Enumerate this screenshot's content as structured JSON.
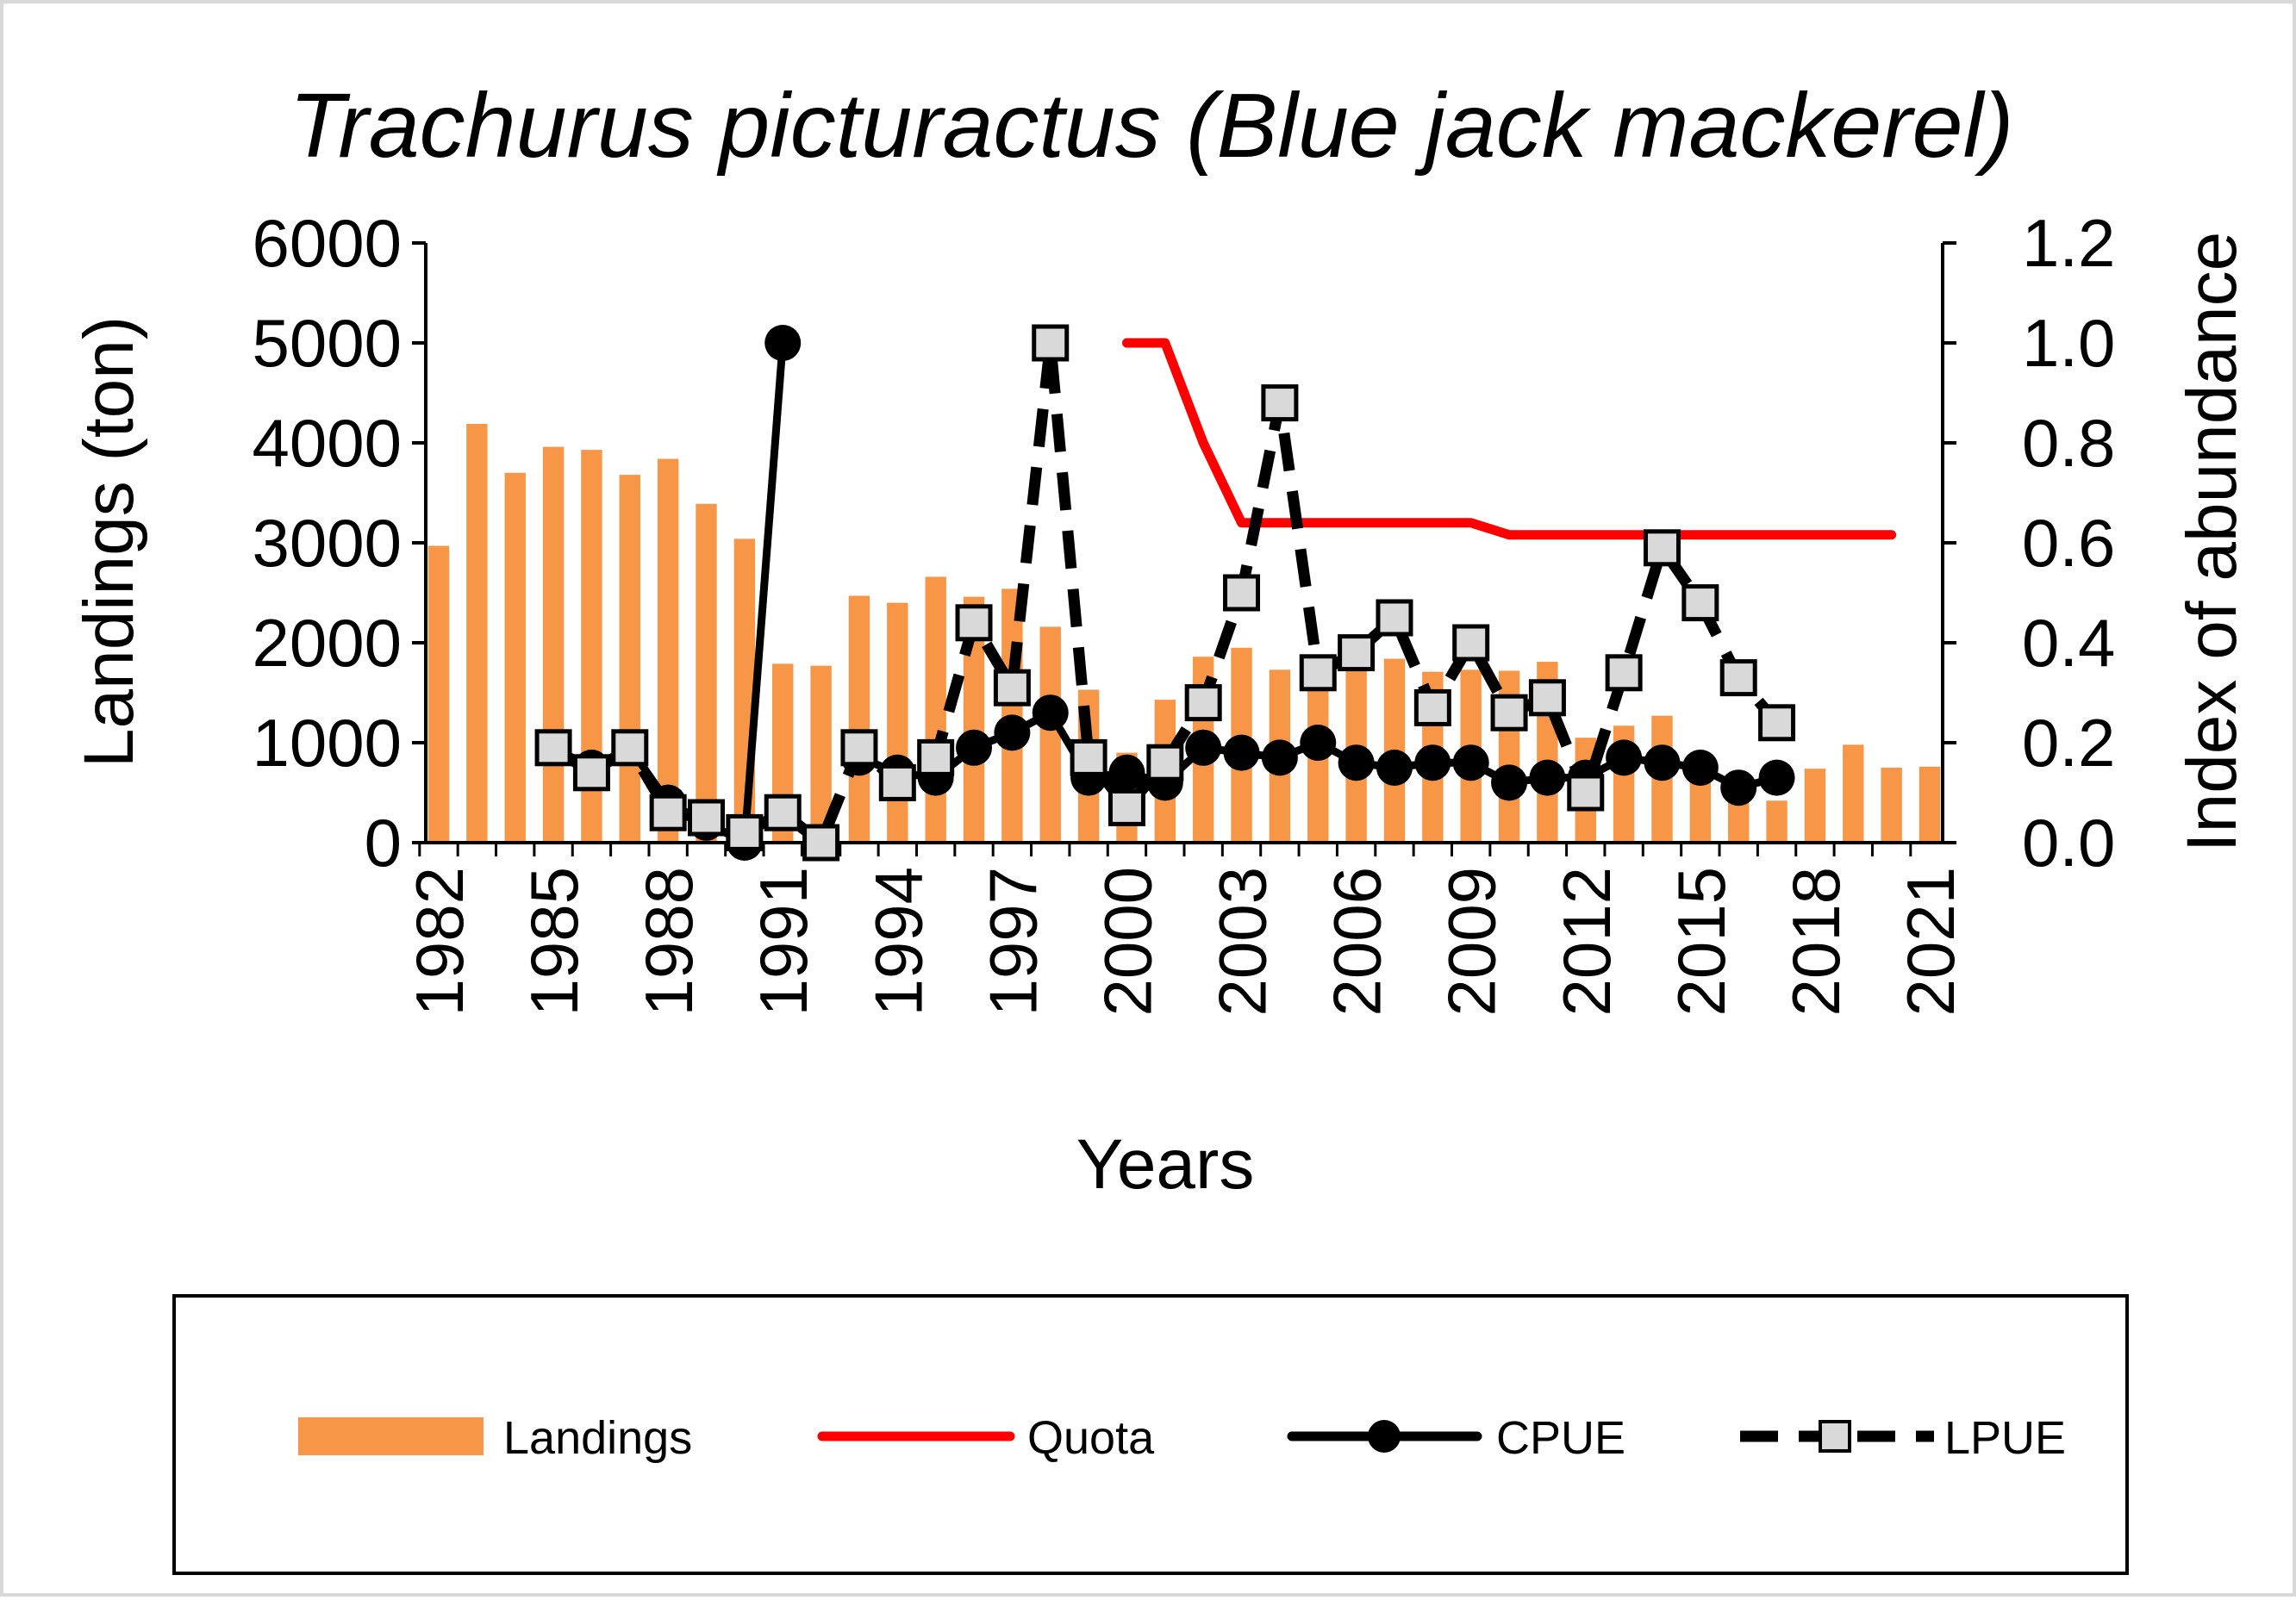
{
  "chart_data": {
    "type": "bar",
    "title": "Trachurus picturactus (Blue jack mackerel)",
    "xlabel": "Years",
    "ylabel": "Landings (ton)",
    "y2label": "Index of abundance",
    "ylim": [
      0,
      6000
    ],
    "y2lim": [
      0,
      1.2
    ],
    "xlim": [
      1982,
      2021
    ],
    "yticks": [
      "0",
      "1000",
      "2000",
      "3000",
      "4000",
      "5000",
      "6000"
    ],
    "y2ticks": [
      "0.0",
      "0.2",
      "0.4",
      "0.6",
      "0.8",
      "1.0",
      "1.2"
    ],
    "xticks": [
      "1982",
      "1985",
      "1988",
      "1991",
      "1994",
      "1997",
      "2000",
      "2003",
      "2006",
      "2009",
      "2012",
      "2015",
      "2018",
      "2021"
    ],
    "legend_position": "bottom",
    "colors": {
      "landings": "#F79646",
      "quota": "#FF0000",
      "cpue": "#000000",
      "lpue_marker": "#D9D9D9"
    },
    "series": [
      {
        "name": "Landings",
        "type": "bar",
        "axis": "left",
        "x": [
          1982,
          1983,
          1984,
          1985,
          1986,
          1987,
          1988,
          1989,
          1990,
          1991,
          1992,
          1993,
          1994,
          1995,
          1996,
          1997,
          1998,
          1999,
          2000,
          2001,
          2002,
          2003,
          2004,
          2005,
          2006,
          2007,
          2008,
          2009,
          2010,
          2011,
          2012,
          2013,
          2014,
          2015,
          2016,
          2017,
          2018,
          2019,
          2020,
          2021
        ],
        "values": [
          2970,
          4190,
          3700,
          3960,
          3930,
          3680,
          3840,
          3390,
          3040,
          1790,
          1770,
          2470,
          2400,
          2660,
          2460,
          2540,
          2160,
          1530,
          900,
          1430,
          1860,
          1950,
          1730,
          1780,
          1780,
          1840,
          1710,
          1730,
          1720,
          1810,
          1050,
          1170,
          1270,
          820,
          600,
          420,
          740,
          980,
          750,
          760
        ]
      },
      {
        "name": "Quota",
        "type": "line",
        "axis": "left",
        "x": [
          2000,
          2001,
          2002,
          2003,
          2004,
          2005,
          2006,
          2007,
          2008,
          2009,
          2010,
          2011,
          2012,
          2013,
          2014,
          2015,
          2016,
          2017,
          2018,
          2019,
          2020
        ],
        "values": [
          5000,
          5000,
          4000,
          3200,
          3200,
          3200,
          3200,
          3200,
          3200,
          3200,
          3080,
          3080,
          3080,
          3080,
          3080,
          3080,
          3080,
          3080,
          3080,
          3080,
          3080
        ]
      },
      {
        "name": "CPUE",
        "type": "line",
        "axis": "right",
        "x": [
          1985,
          1986,
          1987,
          1988,
          1989,
          1990,
          1991,
          null,
          1993,
          1994,
          1995,
          1996,
          1997,
          1998,
          1999,
          2000,
          2001,
          2002,
          2003,
          2004,
          2005,
          2006,
          2007,
          2008,
          2009,
          2010,
          2011,
          2012,
          2013,
          2014,
          2015,
          2016,
          2017
        ],
        "values": [
          0.19,
          0.15,
          0.19,
          0.08,
          0.04,
          0.0,
          1.0,
          null,
          0.17,
          0.14,
          0.13,
          0.19,
          0.22,
          0.26,
          0.13,
          0.14,
          0.12,
          0.19,
          0.18,
          0.17,
          0.2,
          0.16,
          0.15,
          0.16,
          0.16,
          0.12,
          0.13,
          0.13,
          0.17,
          0.16,
          0.15,
          0.11,
          0.13
        ]
      },
      {
        "name": "LPUE",
        "type": "line",
        "axis": "right",
        "x": [
          1985,
          1986,
          1987,
          1988,
          1989,
          1990,
          1991,
          1992,
          1993,
          1994,
          1995,
          1996,
          1997,
          1998,
          1999,
          2000,
          2001,
          2002,
          2003,
          2004,
          2005,
          2006,
          2007,
          2008,
          2009,
          2010,
          2011,
          2012,
          2013,
          2014,
          2015,
          2016,
          2017
        ],
        "values": [
          0.19,
          0.14,
          0.19,
          0.06,
          0.05,
          0.02,
          0.06,
          0.0,
          0.19,
          0.12,
          0.17,
          0.44,
          0.31,
          1.0,
          0.17,
          0.07,
          0.16,
          0.28,
          0.5,
          0.88,
          0.34,
          0.38,
          0.45,
          0.27,
          0.4,
          0.26,
          0.29,
          0.1,
          0.34,
          0.59,
          0.48,
          0.33,
          0.24
        ]
      }
    ]
  }
}
